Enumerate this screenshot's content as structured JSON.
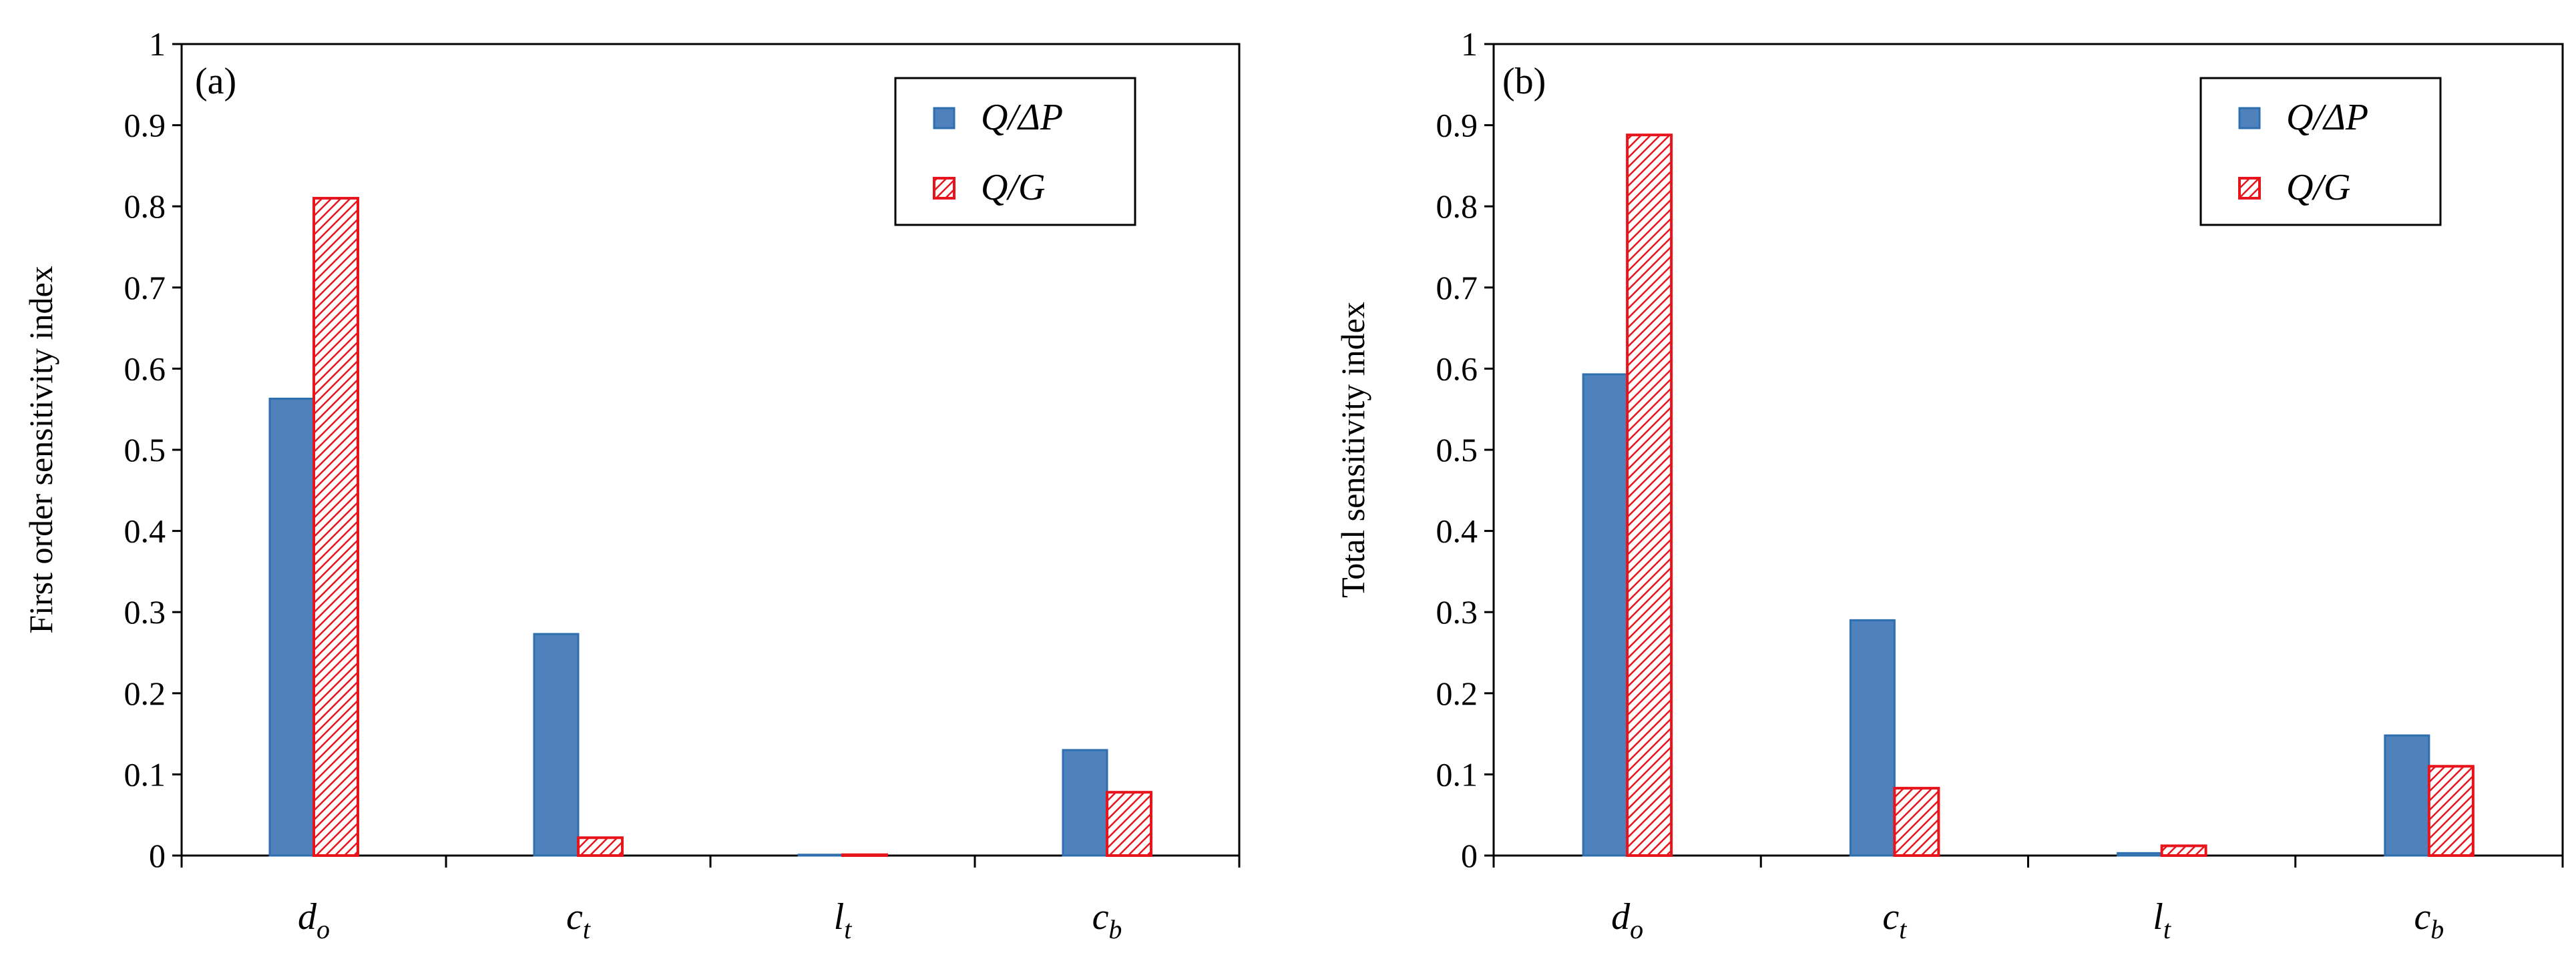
{
  "chart_data": [
    {
      "type": "bar",
      "panel_label": "(a)",
      "ylabel": "First order sensitivity index",
      "xlabel": "",
      "ylim": [
        0,
        1
      ],
      "yticks": [
        "0",
        "0.1",
        "0.2",
        "0.3",
        "0.4",
        "0.5",
        "0.6",
        "0.7",
        "0.8",
        "0.9",
        "1"
      ],
      "categories": [
        {
          "base": "d",
          "sub": "o"
        },
        {
          "base": "c",
          "sub": "t"
        },
        {
          "base": "l",
          "sub": "t"
        },
        {
          "base": "c",
          "sub": "b"
        }
      ],
      "series": [
        {
          "name": "Q/ΔP",
          "values": [
            0.563,
            0.273,
            0.001,
            0.13
          ]
        },
        {
          "name": "Q/G",
          "values": [
            0.81,
            0.022,
            0.001,
            0.078
          ]
        }
      ],
      "legend_location": "top-right"
    },
    {
      "type": "bar",
      "panel_label": "(b)",
      "ylabel": "Total sensitivity index",
      "xlabel": "",
      "ylim": [
        0,
        1
      ],
      "yticks": [
        "0",
        "0.1",
        "0.2",
        "0.3",
        "0.4",
        "0.5",
        "0.6",
        "0.7",
        "0.8",
        "0.9",
        "1"
      ],
      "categories": [
        {
          "base": "d",
          "sub": "o"
        },
        {
          "base": "c",
          "sub": "t"
        },
        {
          "base": "l",
          "sub": "t"
        },
        {
          "base": "c",
          "sub": "b"
        }
      ],
      "series": [
        {
          "name": "Q/ΔP",
          "values": [
            0.593,
            0.29,
            0.003,
            0.148
          ]
        },
        {
          "name": "Q/G",
          "values": [
            0.888,
            0.083,
            0.012,
            0.11
          ]
        }
      ],
      "legend_location": "top-right"
    }
  ],
  "colors": {
    "series1_fill": "#4f81bd",
    "series1_stroke": "#2e6fb0",
    "series2_stroke": "#e8141c",
    "series2_hatch": "#e8141c",
    "axis": "#000000"
  }
}
